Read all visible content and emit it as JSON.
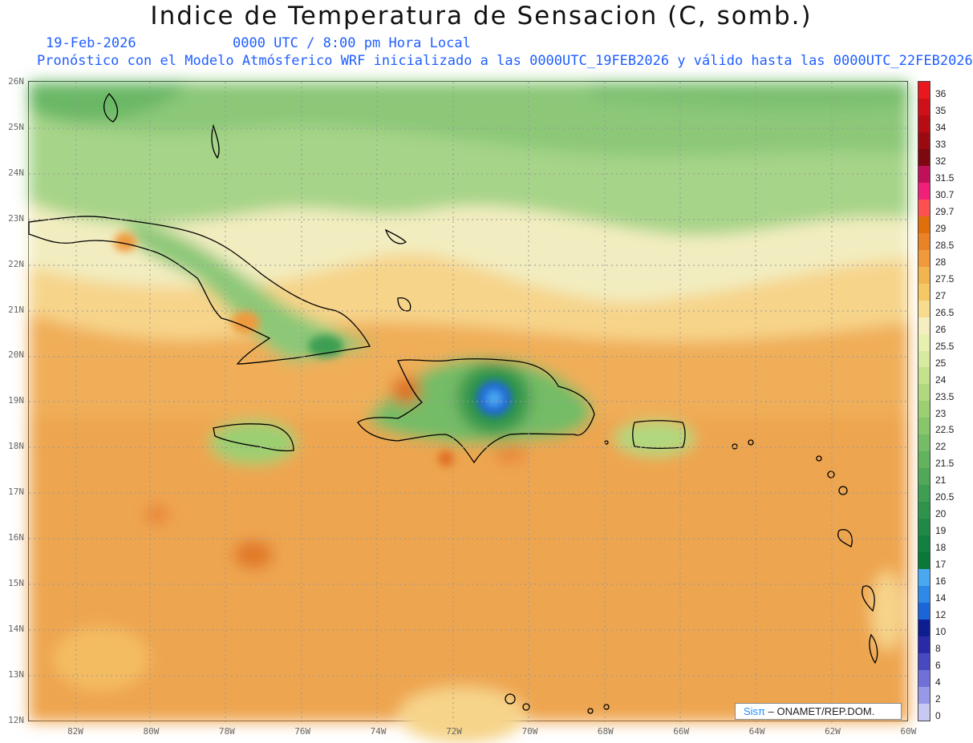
{
  "header": {
    "title": "Indice de Temperatura de Sensacion (C, somb.)",
    "date": "19-Feb-2026",
    "time": "0000 UTC / 8:00 pm Hora Local",
    "forecast": "Pronóstico con el Modelo Atmósferico WRF inicializado a las 0000UTC_19FEB2026 y válido hasta las  0000UTC_22FEB2026"
  },
  "axes": {
    "lat_labels": [
      "26N",
      "25N",
      "24N",
      "23N",
      "22N",
      "21N",
      "20N",
      "19N",
      "18N",
      "17N",
      "16N",
      "15N",
      "14N",
      "13N",
      "12N"
    ],
    "lon_labels": [
      "82W",
      "80W",
      "78W",
      "76W",
      "74W",
      "72W",
      "70W",
      "68W",
      "66W",
      "64W",
      "62W",
      "60W"
    ]
  },
  "colorbar": {
    "levels": [
      "36",
      "35",
      "34",
      "33",
      "32",
      "31.5",
      "30.7",
      "29.7",
      "29",
      "28.5",
      "28",
      "27.5",
      "27",
      "26.5",
      "26",
      "25.5",
      "25",
      "24",
      "23.5",
      "23",
      "22.5",
      "22",
      "21.5",
      "21",
      "20.5",
      "20",
      "19",
      "18",
      "17",
      "16",
      "14",
      "12",
      "10",
      "8",
      "6",
      "4",
      "2",
      "0"
    ],
    "colors": [
      "#e8181e",
      "#d01018",
      "#b80c14",
      "#9a0a10",
      "#7d0810",
      "#c0105a",
      "#f0207a",
      "#ff5050",
      "#e06e0a",
      "#ea8226",
      "#f09a3c",
      "#f2b44e",
      "#f6c864",
      "#f6dc8c",
      "#f4eec0",
      "#e8f0b0",
      "#d8eaa0",
      "#c4e28c",
      "#b0d87e",
      "#9ccf72",
      "#88c66c",
      "#74bc66",
      "#62b25e",
      "#50a858",
      "#3e9e52",
      "#2e944c",
      "#1e8a46",
      "#128040",
      "#0a7838",
      "#4aa8f0",
      "#2e8ae8",
      "#1a66d8",
      "#0e1e90",
      "#2a2aa8",
      "#4848c0",
      "#7070d8",
      "#9898e8",
      "#c8c8f4"
    ]
  },
  "credit": {
    "brand": "Sisπ",
    "org": "– ONAMET/REP.DOM."
  },
  "map": {
    "grid": "dotted",
    "projection": "lat-lon",
    "lat_range": [
      12,
      26
    ],
    "lon_range": [
      -83.2,
      -60
    ]
  }
}
